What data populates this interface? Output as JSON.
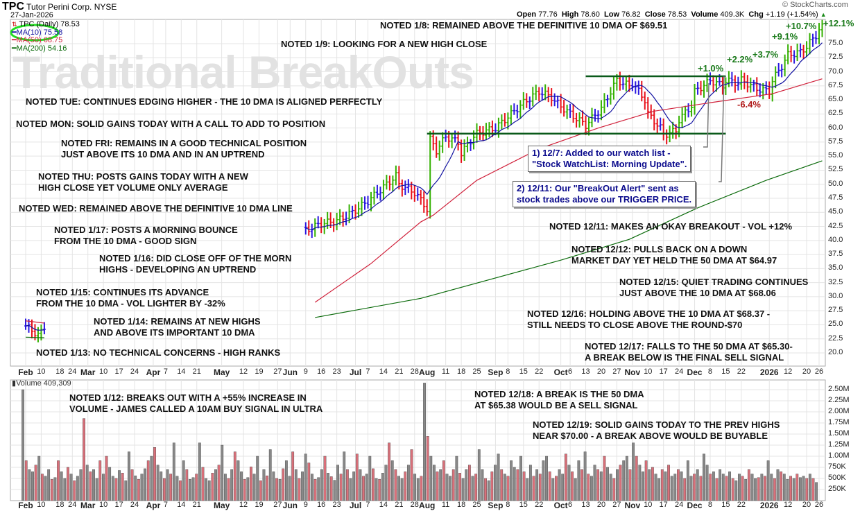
{
  "header": {
    "symbol": "TPC",
    "company": "Tutor Perini Corp.",
    "exchange": "NYSE",
    "date": "27-Jan-2026",
    "copyright": "© StockCharts.com",
    "open_label": "Open",
    "open": "77.76",
    "high_label": "High",
    "high": "78.60",
    "low_label": "Low",
    "low": "76.82",
    "close_label": "Close",
    "close": "78.53",
    "volume_label": "Volume",
    "volume": "409.3K",
    "chg_label": "Chg",
    "chg": "+1.19 (+1.54%)"
  },
  "legend": {
    "price": "TPC (Daily) 78.53",
    "ma10": "MA(10) 75.58",
    "ma50": "MA(50) 68.75",
    "ma200": "MA(200) 54.16",
    "volume": "Volume 409,309"
  },
  "watermark": "Traditional BreakOuts",
  "notes": {
    "n1": "NOTED 1/8: REMAINED ABOVE THE DEFINITIVE 10 DMA OF $69.51",
    "n2": "NOTED 1/9: LOOKING FOR A NEW HIGH CLOSE",
    "n3": "NOTED TUE: CONTINUES EDGING HIGHER - THE 10 DMA IS ALIGNED PERFECTLY",
    "n4": "NOTED MON: SOLID GAINS TODAY WITH A CALL TO ADD TO POSITION",
    "n5a": "NOTED FRI: REMAINS IN A GOOD TECHNICAL POSITION",
    "n5b": "JUST ABOVE ITS 10 DMA AND IN AN UPTREND",
    "n6a": "NOTED THU: POSTS GAINS TODAY WITH A NEW",
    "n6b": "HIGH CLOSE YET VOLUME ONLY AVERAGE",
    "n7": "NOTED WED: REMAINED ABOVE THE DEFINITIVE 10 DMA LINE",
    "n8a": "NOTED 1/17: POSTS A MORNING BOUNCE",
    "n8b": "FROM THE 10 DMA - GOOD SIGN",
    "n9a": "NOTED 1/16: DID CLOSE OFF OF THE MORN",
    "n9b": "HIGHS - DEVELOPING AN UPTREND",
    "n10a": "NOTED 1/15: CONTINUES ITS ADVANCE",
    "n10b": "FROM THE 10 DMA - VOL LIGHTER BY -32%",
    "n11a": "NOTED 1/14: REMAINS AT NEW HIGHS",
    "n11b": "AND ABOVE ITS IMPORTANT 10 DMA",
    "n12": "NOTED 1/13: NO TECHNICAL CONCERNS - HIGH RANKS",
    "n13": "NOTED 12/11: MAKES AN OKAY BREAKOUT - VOL +12%",
    "n14a": "NOTED 12/12: PULLS BACK ON A DOWN",
    "n14b": "MARKET DAY YET HELD THE 50 DMA AT $64.97",
    "n15a": "NOTED 12/15: QUIET TRADING CONTINUES",
    "n15b": "JUST ABOVE THE 10 DMA AT $68.06",
    "n16a": "NOTED 12/16: HOLDING ABOVE THE 10 DMA AT $68.37 -",
    "n16b": "STILL NEEDS TO CLOSE ABOVE THE ROUND-$70",
    "n17a": "NOTED 12/17: FALLS TO THE 50 DMA AT  $65.30-",
    "n17b": "A BREAK BELOW IS THE FINAL SELL SIGNAL",
    "n18a": "NOTED 1/12: BREAKS OUT WITH A +55% INCREASE IN",
    "n18b": "VOLUME - JAMES CALLED A 10AM BUY SIGNAL IN ULTRA",
    "n19a": "NOTED 12/18: A BREAK IS THE 50 DMA",
    "n19b": "AT $65.38 WOULD BE A SELL SIGNAL",
    "n20a": "NOTED 12/19: SOLID GAINS TODAY TO THE PREV HIGHS",
    "n20b": "NEAR $70.00 - A BREAK ABOVE WOULD BE BUYABLE"
  },
  "callouts": {
    "c1a": "1) 12/7: Added to our watch list -",
    "c1b": "\"Stock WatchList: Morning Update\".",
    "c2a": "2) 12/11: Our \"BreakOut Alert\" sent as",
    "c2b": "stock trades above our TRIGGER PRICE."
  },
  "percent_labels": {
    "p1": "+1.0%",
    "p2": "+2.2%",
    "p3": "+3.7%",
    "p4": "+9.1%",
    "p5": "+10.7%",
    "p6": "+12.1%",
    "p7": "-6.4%"
  },
  "colors": {
    "up": "#33b000",
    "down": "#e8101a",
    "flat": "#2a18e0",
    "ma10": "#1010a0",
    "ma50": "#d0203a",
    "ma200": "#0a6a0a",
    "level": "#0a5a1a",
    "vol_up": "#888888",
    "vol_down": "#d9707a",
    "circle": "#22dd22"
  },
  "chart_data": {
    "type": "ohlc-bar",
    "title": "TPC Tutor Perini Corp. NYSE (Daily)",
    "y_axis": {
      "min": 17.5,
      "max": 77.5,
      "ticks": [
        "75.0",
        "72.5",
        "70.0",
        "67.5",
        "65.0",
        "62.5",
        "60.0",
        "57.5",
        "55.0",
        "52.5",
        "50.0",
        "47.5",
        "45.0",
        "42.5",
        "40.0",
        "37.5",
        "35.0",
        "32.5",
        "30.0",
        "27.5",
        "25.0",
        "22.5",
        "20.0"
      ]
    },
    "x_ticks": [
      {
        "date": "2025-02-03",
        "label": "Feb",
        "bold": true
      },
      {
        "date": "2025-02-10",
        "label": "10"
      },
      {
        "date": "2025-02-18",
        "label": "18"
      },
      {
        "date": "2025-02-24",
        "label": "24"
      },
      {
        "date": "2025-03-03",
        "label": "Mar",
        "bold": true
      },
      {
        "date": "2025-03-10",
        "label": "10"
      },
      {
        "date": "2025-03-17",
        "label": "17"
      },
      {
        "date": "2025-03-24",
        "label": "24"
      },
      {
        "date": "2025-04-01",
        "label": "Apr",
        "bold": true
      },
      {
        "date": "2025-04-07",
        "label": "7"
      },
      {
        "date": "2025-04-14",
        "label": "14"
      },
      {
        "date": "2025-04-21",
        "label": "21"
      },
      {
        "date": "2025-05-01",
        "label": "May",
        "bold": true
      },
      {
        "date": "2025-05-12",
        "label": "12"
      },
      {
        "date": "2025-05-19",
        "label": "19"
      },
      {
        "date": "2025-05-27",
        "label": "27"
      },
      {
        "date": "2025-06-02",
        "label": "Jun",
        "bold": true
      },
      {
        "date": "2025-06-09",
        "label": "9"
      },
      {
        "date": "2025-06-16",
        "label": "16"
      },
      {
        "date": "2025-06-23",
        "label": "23"
      },
      {
        "date": "2025-07-01",
        "label": "Jul",
        "bold": true
      },
      {
        "date": "2025-07-07",
        "label": "7"
      },
      {
        "date": "2025-07-14",
        "label": "14"
      },
      {
        "date": "2025-07-21",
        "label": "21"
      },
      {
        "date": "2025-07-28",
        "label": "28"
      },
      {
        "date": "2025-08-01",
        "label": "Aug",
        "bold": true
      },
      {
        "date": "2025-08-11",
        "label": "11"
      },
      {
        "date": "2025-08-18",
        "label": "18"
      },
      {
        "date": "2025-08-25",
        "label": "25"
      },
      {
        "date": "2025-09-02",
        "label": "Sep",
        "bold": true
      },
      {
        "date": "2025-09-08",
        "label": "8"
      },
      {
        "date": "2025-09-15",
        "label": "15"
      },
      {
        "date": "2025-09-22",
        "label": "22"
      },
      {
        "date": "2025-10-01",
        "label": "Oct",
        "bold": true
      },
      {
        "date": "2025-10-06",
        "label": "6"
      },
      {
        "date": "2025-10-13",
        "label": "13"
      },
      {
        "date": "2025-10-20",
        "label": "20"
      },
      {
        "date": "2025-10-27",
        "label": "27"
      },
      {
        "date": "2025-11-03",
        "label": "Nov",
        "bold": true
      },
      {
        "date": "2025-11-10",
        "label": "10"
      },
      {
        "date": "2025-11-17",
        "label": "17"
      },
      {
        "date": "2025-11-24",
        "label": "24"
      },
      {
        "date": "2025-12-01",
        "label": "Dec",
        "bold": true
      },
      {
        "date": "2025-12-08",
        "label": "8"
      },
      {
        "date": "2025-12-15",
        "label": "15"
      },
      {
        "date": "2025-12-22",
        "label": "22"
      },
      {
        "date": "2026-01-02",
        "label": "2026",
        "bold": true
      },
      {
        "date": "2026-01-12",
        "label": "12"
      },
      {
        "date": "2026-01-20",
        "label": "20"
      },
      {
        "date": "2026-01-26",
        "label": "26"
      }
    ],
    "price_segments": [
      [
        [
          "2025-02-03",
          24.8
        ],
        [
          "2025-02-05",
          24.0
        ],
        [
          "2025-02-07",
          23.2
        ],
        [
          "2025-02-11",
          24.2
        ]
      ],
      [
        [
          "2025-06-09",
          41.8
        ],
        [
          "2025-06-16",
          43
        ],
        [
          "2025-06-23",
          43.5
        ],
        [
          "2025-06-30",
          45
        ],
        [
          "2025-07-07",
          47
        ],
        [
          "2025-07-14",
          49.5
        ],
        [
          "2025-07-18",
          51.5
        ],
        [
          "2025-07-21",
          50
        ],
        [
          "2025-07-25",
          48.8
        ],
        [
          "2025-07-28",
          48.5
        ],
        [
          "2025-07-31",
          46.5
        ],
        [
          "2025-08-01",
          45.5
        ],
        [
          "2025-08-04",
          58
        ],
        [
          "2025-08-06",
          56
        ],
        [
          "2025-08-11",
          58.5
        ],
        [
          "2025-08-15",
          57.5
        ],
        [
          "2025-08-18",
          55.5
        ],
        [
          "2025-08-22",
          58.5
        ],
        [
          "2025-08-25",
          59
        ],
        [
          "2025-09-02",
          60
        ],
        [
          "2025-09-08",
          62
        ],
        [
          "2025-09-15",
          64.5
        ],
        [
          "2025-09-22",
          66.5
        ],
        [
          "2025-09-26",
          65.5
        ],
        [
          "2025-09-29",
          64.8
        ],
        [
          "2025-10-06",
          62.5
        ],
        [
          "2025-10-13",
          60.5
        ],
        [
          "2025-10-20",
          63.5
        ],
        [
          "2025-10-27",
          68.5
        ],
        [
          "2025-10-31",
          67.5
        ],
        [
          "2025-11-03",
          68
        ],
        [
          "2025-11-07",
          65
        ],
        [
          "2025-11-10",
          62.5
        ],
        [
          "2025-11-14",
          60
        ],
        [
          "2025-11-17",
          58.8
        ],
        [
          "2025-11-21",
          59.5
        ],
        [
          "2025-11-24",
          61.5
        ],
        [
          "2025-11-28",
          64
        ],
        [
          "2025-12-01",
          66.5
        ],
        [
          "2025-12-05",
          68
        ],
        [
          "2025-12-08",
          68.5
        ],
        [
          "2025-12-12",
          67.5
        ],
        [
          "2025-12-15",
          68.5
        ],
        [
          "2025-12-19",
          68
        ],
        [
          "2025-12-22",
          68.5
        ],
        [
          "2025-12-29",
          67
        ],
        [
          "2026-01-02",
          66.5
        ],
        [
          "2026-01-05",
          68.5
        ],
        [
          "2026-01-08",
          71
        ],
        [
          "2026-01-12",
          73
        ],
        [
          "2026-01-16",
          73.5
        ],
        [
          "2026-01-20",
          74.5
        ],
        [
          "2026-01-23",
          76.5
        ],
        [
          "2026-01-27",
          78.5
        ]
      ]
    ],
    "ma50": [
      [
        "2025-02-03",
        25.7
      ],
      [
        "2025-02-11",
        25.3
      ],
      null,
      [
        "2025-06-12",
        29
      ],
      [
        "2025-07-08",
        35.9
      ],
      [
        "2025-07-30",
        43.3
      ],
      [
        "2025-08-05",
        44.5
      ],
      [
        "2025-08-25",
        50.7
      ],
      [
        "2025-09-22",
        56.3
      ],
      [
        "2025-10-17",
        60
      ],
      [
        "2025-11-12",
        63
      ],
      [
        "2025-12-08",
        64.5
      ],
      [
        "2026-01-05",
        66.1
      ],
      [
        "2026-01-27",
        68.75
      ]
    ],
    "ma200": [
      [
        "2025-02-03",
        22.8
      ],
      [
        "2025-02-11",
        22.7
      ],
      null,
      [
        "2025-06-12",
        26.3
      ],
      [
        "2025-07-30",
        29.7
      ],
      [
        "2025-10-01",
        36.5
      ],
      [
        "2025-10-31",
        40.2
      ],
      [
        "2025-12-02",
        45.8
      ],
      [
        "2026-01-01",
        50.7
      ],
      [
        "2026-01-27",
        54.16
      ]
    ],
    "levels": [
      {
        "price": 69.2,
        "from": "2025-10-13",
        "to": "2025-12-15"
      },
      {
        "price": 59.0,
        "from": "2025-08-01",
        "to": "2025-12-15"
      }
    ],
    "volume": {
      "label": "Volume 409,309",
      "ticks": [
        "2.50M",
        "2.25M",
        "2.00M",
        "1.75M",
        "1.50M",
        "1.25M",
        "1.00M",
        "750K",
        "500K",
        "250K"
      ],
      "unit": "K",
      "values": [
        2500,
        900,
        700,
        650,
        800,
        1000,
        600,
        550,
        700,
        480,
        520,
        900,
        650,
        500,
        750,
        600,
        450,
        550,
        700,
        1850,
        800,
        650,
        700,
        500,
        900,
        600,
        1000,
        750,
        550,
        500,
        680,
        620,
        450,
        1100,
        700,
        560,
        480,
        600,
        720,
        900,
        1000,
        1200,
        800,
        650,
        500,
        700,
        600,
        1300,
        550,
        450,
        900,
        700,
        480,
        520,
        600,
        1300,
        750,
        500,
        450,
        620,
        700,
        800,
        1250,
        600,
        500,
        700,
        1100,
        900,
        650,
        480,
        520,
        760,
        600,
        1000,
        450,
        700,
        560,
        1150,
        650,
        500,
        480,
        720,
        900,
        550,
        1100,
        700,
        500,
        650,
        1050,
        850,
        600,
        480,
        520,
        700,
        1000,
        620,
        540,
        460,
        800,
        600,
        1100,
        700,
        500,
        650,
        1050,
        700,
        550,
        600,
        1000,
        720,
        500,
        480,
        620,
        800,
        1300,
        900,
        700,
        550,
        500,
        650,
        800,
        1150,
        600,
        500,
        550,
        2650,
        1450,
        1000,
        800,
        650,
        700,
        900,
        600,
        550,
        700,
        1000,
        620,
        500,
        700,
        800,
        550,
        600,
        1150,
        700,
        500,
        450,
        650,
        800,
        1050,
        700,
        600,
        550,
        900,
        750,
        700,
        1000,
        650,
        500,
        800,
        550,
        700,
        600,
        900,
        1000,
        650,
        500,
        550,
        700,
        600,
        1050,
        800,
        650,
        500,
        900,
        700,
        1100,
        600,
        550,
        800,
        700,
        650,
        1000,
        750,
        600,
        500,
        700,
        800,
        900,
        1000,
        700,
        1300,
        1000,
        800,
        650,
        900,
        700,
        750,
        600,
        500,
        700,
        650,
        800,
        550,
        600,
        700,
        650,
        500,
        900,
        550,
        600,
        700,
        550,
        1050,
        800,
        600,
        650,
        500,
        700,
        600,
        550,
        650,
        500,
        450,
        600,
        550,
        480,
        700,
        600,
        500,
        520,
        600,
        550,
        900,
        600,
        500,
        700,
        650,
        600,
        480,
        550,
        500,
        600,
        520,
        550,
        500,
        600,
        500,
        410
      ]
    }
  }
}
